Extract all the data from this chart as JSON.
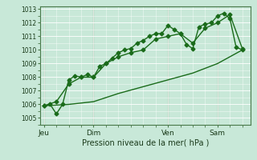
{
  "bg_color": "#c8e8d8",
  "fig_bg": "#c8e8d8",
  "line_color": "#1a6b1a",
  "xlabel": "Pression niveau de la mer( hPa )",
  "ylim": [
    1004.5,
    1013.2
  ],
  "yticks": [
    1005,
    1006,
    1007,
    1008,
    1009,
    1010,
    1011,
    1012,
    1013
  ],
  "xtick_labels": [
    "Jeu",
    "Dim",
    "Ven",
    "Sam"
  ],
  "xtick_positions": [
    0,
    24,
    60,
    84
  ],
  "xlim": [
    -2,
    100
  ],
  "line1_x": [
    0,
    3,
    6,
    9,
    12,
    15,
    18,
    21,
    24,
    27,
    30,
    33,
    36,
    39,
    42,
    45,
    48,
    51,
    54,
    57,
    60,
    63,
    66,
    69,
    72,
    75,
    78,
    81,
    84,
    87,
    90,
    93,
    96
  ],
  "line1_y": [
    1005.9,
    1006.0,
    1005.3,
    1006.0,
    1007.8,
    1008.1,
    1008.0,
    1008.2,
    1008.0,
    1008.8,
    1009.0,
    1009.4,
    1009.8,
    1010.0,
    1010.1,
    1010.5,
    1010.7,
    1011.0,
    1011.2,
    1011.2,
    1011.8,
    1011.5,
    1011.2,
    1010.4,
    1010.1,
    1011.7,
    1011.9,
    1012.0,
    1012.5,
    1012.7,
    1012.3,
    1010.2,
    1010.0
  ],
  "line2_x": [
    0,
    6,
    12,
    18,
    24,
    30,
    36,
    42,
    48,
    54,
    60,
    66,
    72,
    78,
    84,
    90,
    96
  ],
  "line2_y": [
    1005.9,
    1006.2,
    1007.5,
    1008.0,
    1008.0,
    1009.0,
    1009.5,
    1009.8,
    1010.0,
    1010.8,
    1011.0,
    1011.2,
    1010.5,
    1011.6,
    1012.0,
    1012.6,
    1010.1
  ],
  "line3_x": [
    0,
    12,
    24,
    36,
    48,
    60,
    72,
    84,
    96
  ],
  "line3_y": [
    1005.9,
    1006.0,
    1006.2,
    1006.8,
    1007.3,
    1007.8,
    1008.3,
    1009.0,
    1010.0
  ],
  "vline_positions": [
    0,
    24,
    60,
    84
  ],
  "marker_size": 2.5,
  "linewidth": 1.0
}
